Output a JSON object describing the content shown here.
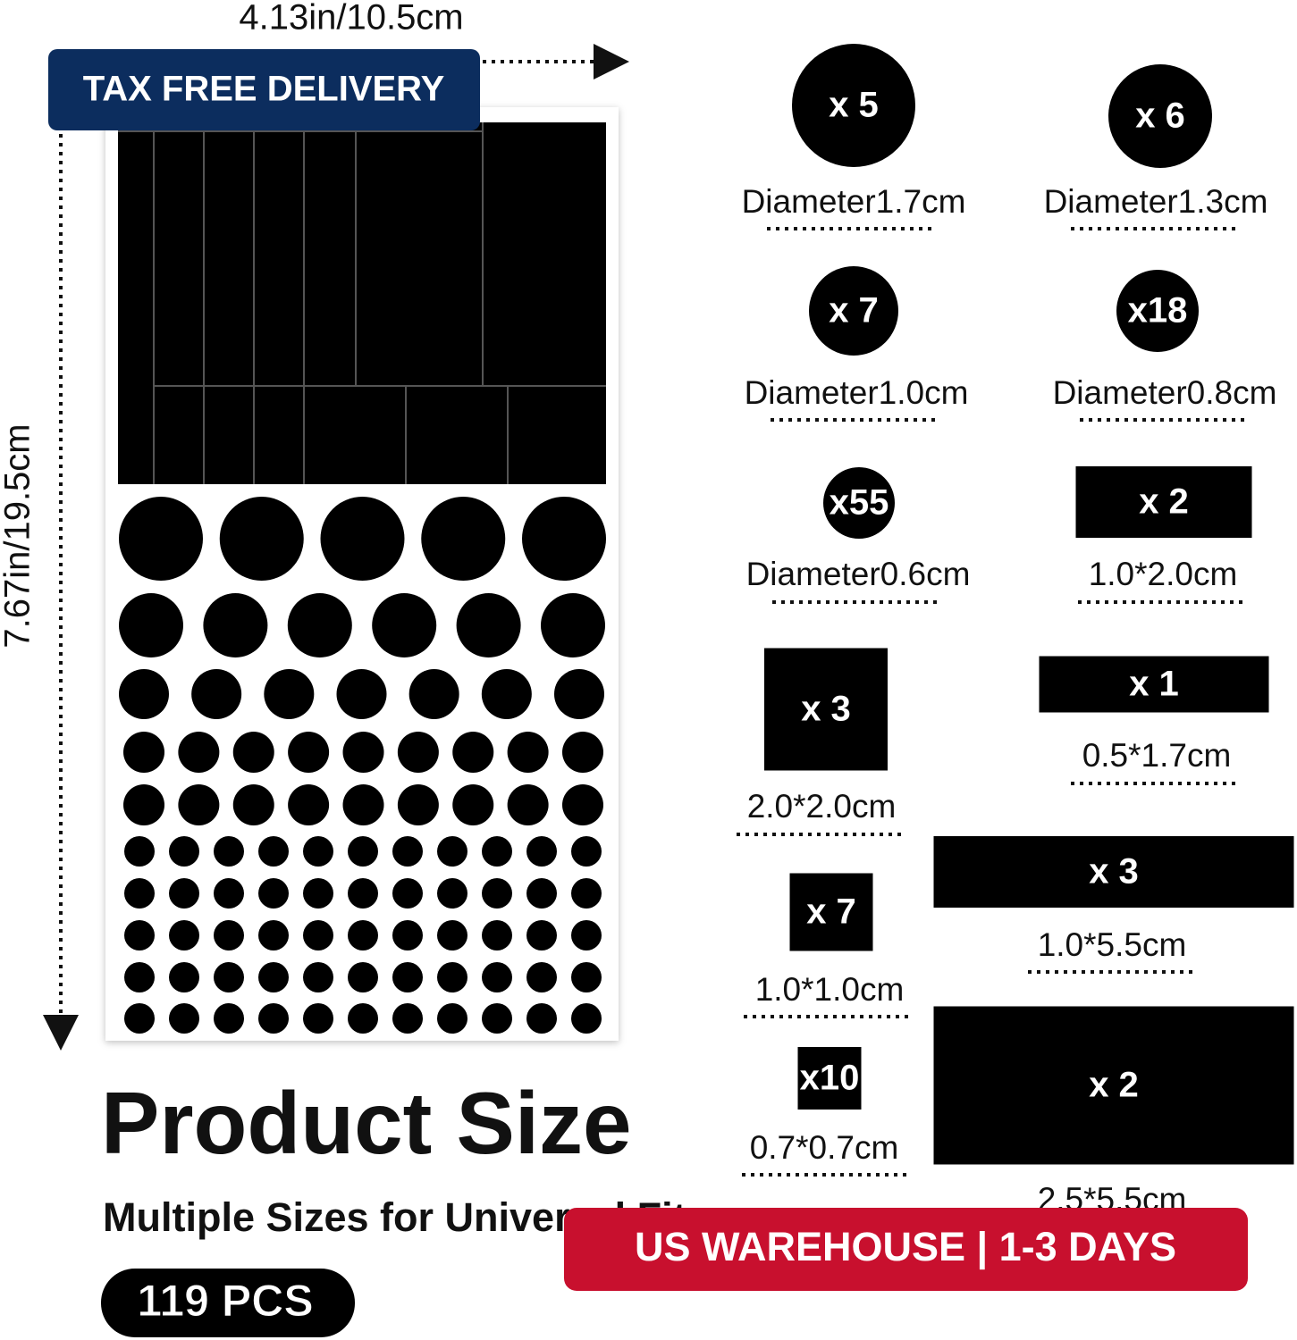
{
  "dimensions": {
    "width": "4.13in/10.5cm",
    "height": "7.67in/19.5cm"
  },
  "badges": {
    "top": "TAX FREE DELIVERY",
    "bottom": "US WAREHOUSE | 1-3 DAYS"
  },
  "pieces": [
    {
      "count": "x 5",
      "size": "Diameter1.7cm"
    },
    {
      "count": "x 6",
      "size": "Diameter1.3cm"
    },
    {
      "count": "x 7",
      "size": "Diameter1.0cm"
    },
    {
      "count": "x18",
      "size": "Diameter0.8cm"
    },
    {
      "count": "x55",
      "size": "Diameter0.6cm"
    },
    {
      "count": "x 2",
      "size": "1.0*2.0cm"
    },
    {
      "count": "x 3",
      "size": "2.0*2.0cm"
    },
    {
      "count": "x 1",
      "size": "0.5*1.7cm"
    },
    {
      "count": "x 7",
      "size": "1.0*1.0cm"
    },
    {
      "count": "x 3",
      "size": "1.0*5.5cm"
    },
    {
      "count": "x10",
      "size": "0.7*0.7cm"
    },
    {
      "count": "x 2",
      "size": "2.5*5.5cm"
    }
  ],
  "heading": {
    "title": "Product Size",
    "subtitle": "Multiple Sizes for Universal Fit",
    "total": "119 PCS"
  }
}
